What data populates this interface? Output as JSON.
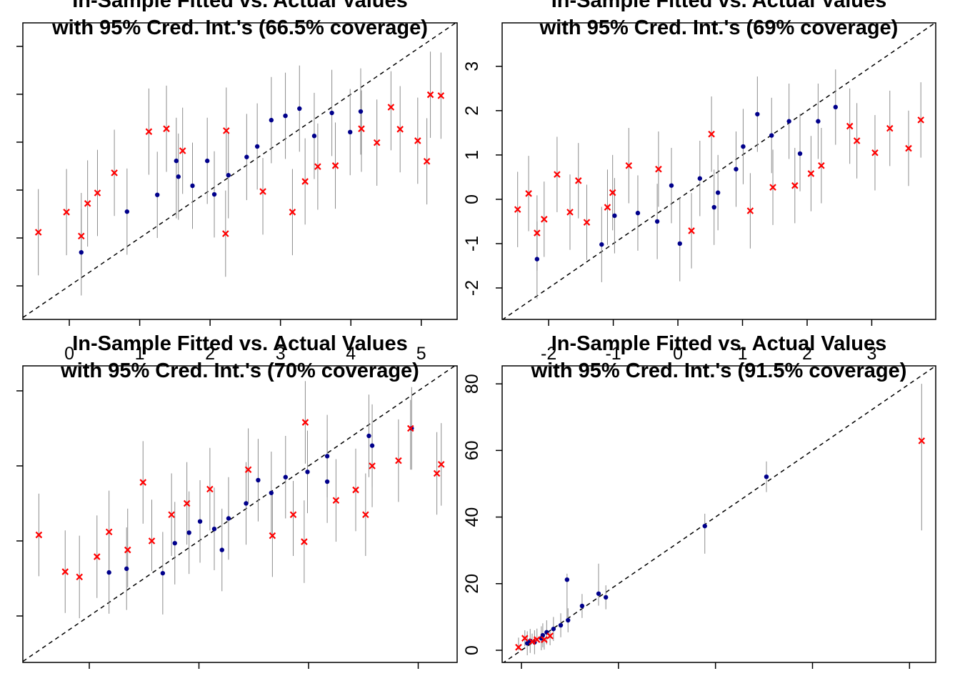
{
  "chart_data": [
    {
      "type": "scatter",
      "title": "In-Sample Fitted vs. Actual Values",
      "subtitle": "with 95% Cred. Int.'s (66.5% coverage)",
      "xlim": [
        -0.66,
        5.51
      ],
      "ylim": [
        -0.7,
        5.49
      ],
      "xticks": [
        0,
        1,
        2,
        3,
        4,
        5
      ],
      "yticks": [
        0,
        1,
        2,
        3,
        4,
        5
      ],
      "show_xtick_labels": true,
      "show_ytick_labels": false,
      "diagonal": true,
      "series": [
        {
          "color": "#00008b",
          "marker": "dot",
          "x": [
            0.17,
            0.82,
            1.25,
            1.55,
            1.75,
            1.96,
            2.26,
            2.52,
            2.87,
            3.07,
            3.27,
            3.48,
            3.73,
            3.99,
            4.14,
            1.52,
            2.67,
            2.06
          ],
          "values": [
            0.7,
            1.55,
            1.9,
            2.28,
            2.09,
            2.61,
            2.31,
            2.69,
            3.46,
            3.55,
            3.7,
            3.13,
            3.61,
            3.21,
            3.64,
            2.61,
            2.91,
            1.91
          ],
          "lower": [
            -0.2,
            0.65,
            1.0,
            1.38,
            1.19,
            1.71,
            1.41,
            1.79,
            2.56,
            2.65,
            2.8,
            2.23,
            2.71,
            2.31,
            2.74,
            1.41,
            2.01,
            1.01
          ],
          "upper": [
            1.6,
            2.45,
            2.8,
            3.18,
            2.99,
            3.51,
            3.21,
            3.59,
            4.36,
            4.45,
            4.6,
            4.03,
            4.51,
            4.11,
            4.54,
            3.51,
            3.81,
            2.81
          ]
        },
        {
          "color": "#ff0000",
          "marker": "cross",
          "x": [
            -0.44,
            -0.04,
            0.17,
            0.26,
            0.4,
            0.64,
            1.13,
            1.38,
            1.61,
            2.22,
            2.23,
            2.75,
            3.17,
            3.35,
            3.53,
            3.78,
            4.15,
            4.37,
            4.57,
            4.7,
            4.95,
            5.08,
            5.13,
            5.28
          ],
          "values": [
            1.12,
            1.54,
            1.04,
            1.72,
            1.94,
            2.36,
            3.22,
            3.28,
            2.82,
            1.09,
            3.24,
            1.97,
            1.54,
            2.18,
            2.49,
            2.51,
            3.28,
            2.99,
            3.73,
            3.27,
            3.03,
            2.6,
            3.99,
            3.97
          ],
          "lower": [
            0.22,
            0.64,
            0.24,
            0.82,
            1.04,
            1.46,
            2.32,
            2.38,
            1.92,
            0.19,
            2.34,
            1.07,
            0.64,
            1.28,
            1.59,
            1.61,
            2.38,
            2.09,
            2.83,
            2.37,
            2.13,
            1.7,
            3.09,
            3.07
          ],
          "upper": [
            2.02,
            2.44,
            1.94,
            2.62,
            2.84,
            3.26,
            4.12,
            4.18,
            3.72,
            1.99,
            4.14,
            2.67,
            2.44,
            3.08,
            3.39,
            3.41,
            4.08,
            3.89,
            4.48,
            4.17,
            3.93,
            3.5,
            4.89,
            4.87
          ]
        }
      ]
    },
    {
      "type": "scatter",
      "title": "In-Sample Fitted vs. Actual Values",
      "subtitle": "with 95% Cred. Int.'s (69% coverage)",
      "xlim": [
        -2.72,
        3.99
      ],
      "ylim": [
        -2.71,
        3.98
      ],
      "xticks": [
        -2,
        -1,
        0,
        1,
        2,
        3
      ],
      "yticks": [
        -2,
        -1,
        0,
        1,
        2,
        3
      ],
      "show_xtick_labels": true,
      "show_ytick_labels": true,
      "diagonal": true,
      "series": [
        {
          "color": "#00008b",
          "marker": "dot",
          "x": [
            -2.18,
            -1.18,
            -0.98,
            -0.62,
            -0.32,
            0.03,
            -0.1,
            0.34,
            0.62,
            0.9,
            1.01,
            1.23,
            1.45,
            1.72,
            2.17,
            2.44,
            0.56,
            1.89
          ],
          "values": [
            -1.35,
            -1.02,
            -0.37,
            -0.31,
            -0.5,
            -1.0,
            0.31,
            0.47,
            0.15,
            0.68,
            1.19,
            1.92,
            1.44,
            1.76,
            1.76,
            2.08,
            -0.18,
            1.03
          ],
          "lower": [
            -2.25,
            -1.87,
            -1.22,
            -1.16,
            -1.35,
            -1.85,
            -0.54,
            -0.38,
            -0.7,
            -0.17,
            0.34,
            1.07,
            0.59,
            0.91,
            0.91,
            1.23,
            -1.03,
            0.18
          ],
          "upper": [
            -0.5,
            -0.17,
            0.48,
            0.54,
            0.35,
            0.05,
            1.16,
            1.32,
            1.0,
            1.53,
            2.04,
            2.77,
            2.29,
            2.61,
            2.61,
            2.93,
            0.67,
            1.93
          ]
        },
        {
          "color": "#ff0000",
          "marker": "cross",
          "x": [
            -2.48,
            -2.31,
            -2.18,
            -2.07,
            -1.87,
            -1.67,
            -1.54,
            -1.41,
            -1.09,
            -1.01,
            -0.76,
            -0.3,
            0.21,
            0.52,
            1.12,
            1.47,
            1.81,
            2.06,
            2.22,
            2.66,
            2.77,
            3.05,
            3.28,
            3.57,
            3.76
          ],
          "values": [
            -0.23,
            0.13,
            -0.76,
            -0.45,
            0.56,
            -0.29,
            0.42,
            -0.52,
            -0.18,
            0.15,
            0.76,
            0.68,
            -0.71,
            1.47,
            -0.26,
            0.27,
            0.31,
            0.58,
            0.76,
            1.65,
            1.32,
            1.05,
            1.6,
            1.15,
            1.79
          ],
          "lower": [
            -1.08,
            -0.72,
            -1.61,
            -1.3,
            -0.29,
            -1.14,
            -0.43,
            -1.37,
            -1.03,
            -0.7,
            -0.09,
            -0.17,
            -1.56,
            0.62,
            -1.11,
            -0.58,
            -0.54,
            -0.27,
            -0.09,
            0.8,
            0.47,
            0.2,
            0.75,
            0.3,
            0.94
          ],
          "upper": [
            0.62,
            0.98,
            0.09,
            0.4,
            1.41,
            0.56,
            1.27,
            0.33,
            0.67,
            1.0,
            1.61,
            1.53,
            0.14,
            2.32,
            0.59,
            1.12,
            1.16,
            1.43,
            1.61,
            2.5,
            2.17,
            1.9,
            2.45,
            2.0,
            2.64
          ]
        }
      ]
    },
    {
      "type": "scatter",
      "title": "In-Sample Fitted vs. Actual Values",
      "subtitle": "with 95% Cred. Int.'s (70% coverage)",
      "xlim": [
        0.394,
        4.355
      ],
      "ylim": [
        0.381,
        4.333
      ],
      "xticks": [
        1,
        2,
        3,
        4
      ],
      "yticks": [
        1,
        2,
        3,
        4
      ],
      "show_xtick_labels": false,
      "show_ytick_labels": false,
      "diagonal": true,
      "series": [
        {
          "color": "#00008b",
          "marker": "dot",
          "x": [
            1.18,
            1.34,
            1.67,
            1.78,
            1.91,
            2.01,
            2.14,
            2.27,
            2.43,
            2.54,
            2.66,
            2.79,
            2.99,
            3.17,
            3.17,
            3.55,
            3.58,
            3.94,
            2.21
          ],
          "values": [
            1.58,
            1.63,
            1.57,
            1.97,
            2.11,
            2.26,
            2.16,
            2.3,
            2.5,
            2.81,
            2.64,
            2.85,
            2.92,
            3.13,
            2.79,
            3.4,
            3.27,
            3.5,
            1.88
          ],
          "lower": [
            1.03,
            1.08,
            1.02,
            1.42,
            1.56,
            1.71,
            1.61,
            1.75,
            1.95,
            2.26,
            2.09,
            2.3,
            2.37,
            2.58,
            2.24,
            2.85,
            2.72,
            2.95,
            1.33
          ],
          "upper": [
            2.13,
            2.18,
            2.12,
            2.52,
            2.66,
            2.81,
            2.71,
            2.85,
            3.05,
            3.36,
            3.19,
            3.4,
            3.47,
            3.68,
            3.34,
            3.95,
            3.82,
            4.05,
            2.43
          ]
        },
        {
          "color": "#ff0000",
          "marker": "cross",
          "x": [
            0.54,
            0.78,
            0.91,
            1.07,
            1.18,
            1.35,
            1.49,
            1.57,
            1.75,
            1.89,
            2.1,
            2.45,
            2.67,
            2.86,
            2.97,
            2.96,
            3.25,
            3.43,
            3.52,
            3.58,
            3.82,
            3.93,
            4.17,
            4.21
          ],
          "values": [
            2.08,
            1.59,
            1.52,
            1.79,
            2.12,
            1.88,
            2.78,
            2.0,
            2.35,
            2.5,
            2.69,
            2.95,
            2.07,
            2.35,
            3.58,
            1.99,
            2.54,
            2.68,
            2.35,
            3.0,
            3.07,
            3.5,
            2.9,
            3.02
          ],
          "lower": [
            1.53,
            1.04,
            0.97,
            1.24,
            1.57,
            1.38,
            2.23,
            1.6,
            1.8,
            1.95,
            2.14,
            2.5,
            1.52,
            1.8,
            3.03,
            1.44,
            1.99,
            2.13,
            1.8,
            2.45,
            2.52,
            2.95,
            2.35,
            2.47
          ],
          "upper": [
            2.63,
            2.14,
            2.07,
            2.34,
            2.67,
            2.43,
            3.33,
            2.55,
            2.9,
            3.05,
            3.24,
            3.5,
            2.62,
            2.8,
            4.13,
            2.54,
            3.09,
            3.23,
            2.9,
            3.55,
            3.62,
            3.88,
            3.45,
            3.57
          ]
        }
      ]
    },
    {
      "type": "scatter",
      "title": "In-Sample Fitted vs. Actual Values",
      "subtitle": "with 95% Cred. Int.'s (91.5% coverage)",
      "xlim": [
        -3.98,
        85.4
      ],
      "ylim": [
        -3.65,
        85.4
      ],
      "xticks": [
        0,
        20,
        40,
        60,
        80
      ],
      "yticks": [
        0,
        20,
        40,
        60,
        80
      ],
      "show_xtick_labels": false,
      "show_ytick_labels": true,
      "diagonal": true,
      "series": [
        {
          "color": "#00008b",
          "marker": "dot",
          "x": [
            1.2,
            1.8,
            2.7,
            4.1,
            5.2,
            6.6,
            8.1,
            9.6,
            9.4,
            12.5,
            15.9,
            17.4,
            37.8,
            50.5,
            4.4
          ],
          "values": [
            2.1,
            2.8,
            2.4,
            3.6,
            5.4,
            6.4,
            7.5,
            9.0,
            21.2,
            13.3,
            17.0,
            15.9,
            37.3,
            52.1,
            4.5
          ],
          "lower": [
            -1.5,
            -0.8,
            -1.2,
            0.0,
            1.8,
            2.8,
            3.9,
            5.4,
            9.0,
            9.7,
            13.4,
            12.3,
            29.0,
            47.5,
            0.9
          ],
          "upper": [
            5.7,
            6.4,
            6.0,
            7.2,
            9.0,
            10.0,
            11.1,
            12.6,
            23.0,
            16.9,
            26.0,
            19.5,
            41.0,
            56.7,
            8.1
          ]
        },
        {
          "color": "#ff0000",
          "marker": "cross",
          "x": [
            -0.6,
            0.7,
            2.2,
            3.2,
            4.7,
            5.9,
            82.5
          ],
          "values": [
            0.9,
            3.6,
            2.6,
            3.2,
            3.2,
            4.3,
            62.9
          ],
          "lower": [
            0.0,
            1.2,
            2.4,
            3.4,
            0.2,
            1.5,
            36.0
          ],
          "upper": [
            3.8,
            6.0,
            5.0,
            6.5,
            4.5,
            5.6,
            80.0
          ]
        }
      ]
    }
  ]
}
